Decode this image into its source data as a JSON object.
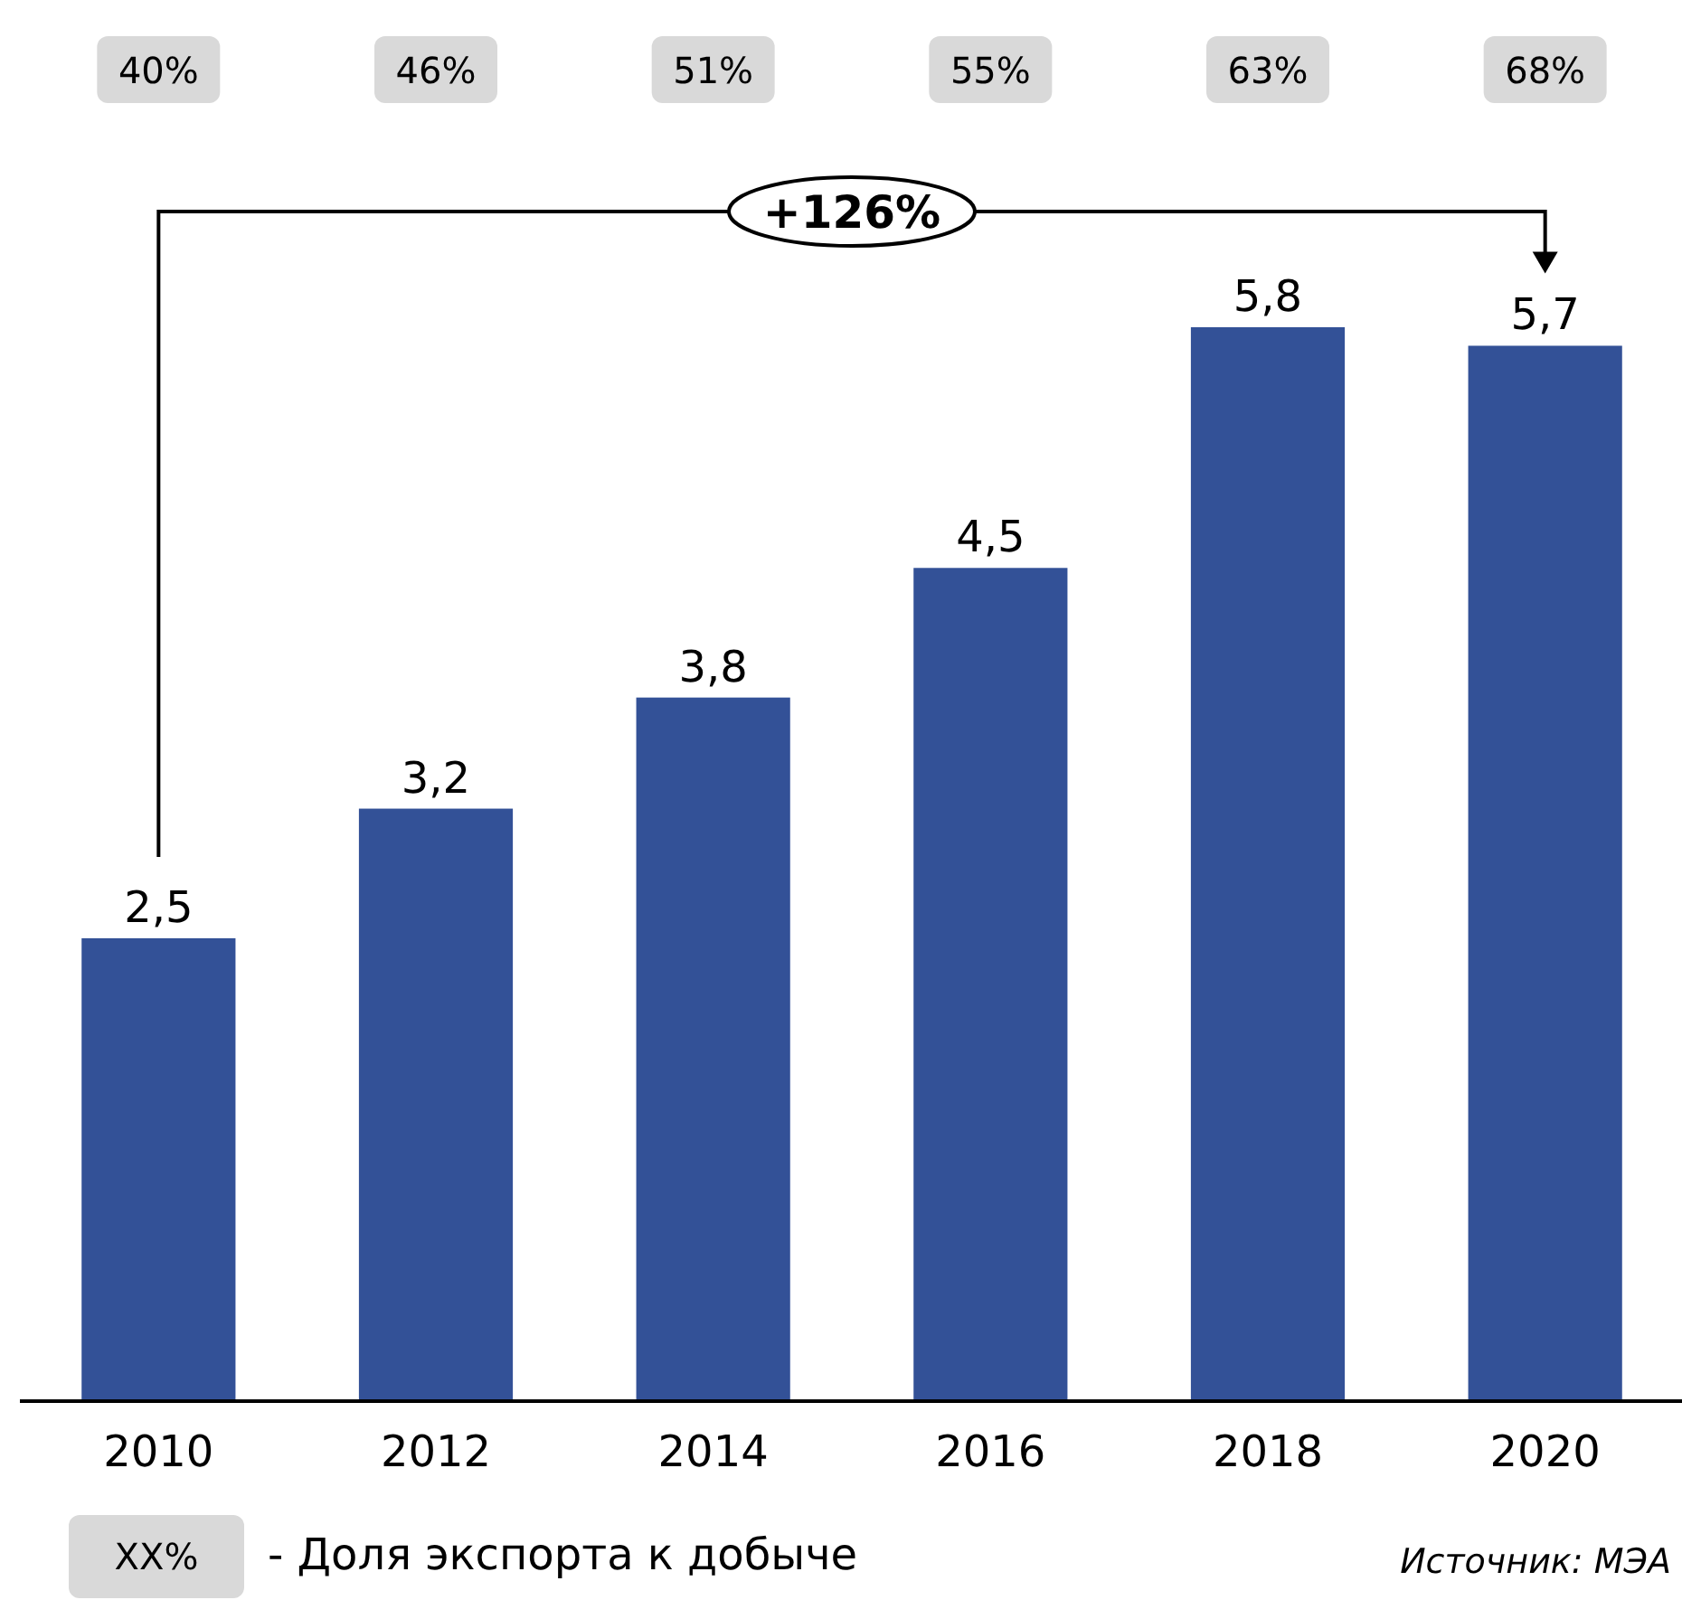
{
  "chart_data": {
    "type": "bar",
    "categories": [
      "2010",
      "2012",
      "2014",
      "2016",
      "2018",
      "2020"
    ],
    "values": [
      2.5,
      3.2,
      3.8,
      4.5,
      5.8,
      5.7
    ],
    "value_labels": [
      "2,5",
      "3,2",
      "3,8",
      "4,5",
      "5,8",
      "5,7"
    ],
    "color": "#335197",
    "annotations": [
      "40%",
      "46%",
      "51%",
      "55%",
      "63%",
      "68%",
      "+126%",
      "XX%",
      "- Доля экспорта к добыче",
      "Источник: МЭА"
    ]
  }
}
